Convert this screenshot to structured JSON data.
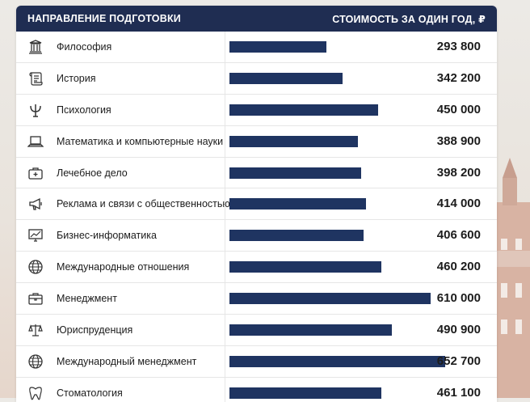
{
  "table": {
    "header_left": "НАПРАВЛЕНИЕ ПОДГОТОВКИ",
    "header_right": "СТОИМОСТЬ ЗА ОДИН ГОД, ₽"
  },
  "chart_data": {
    "type": "bar",
    "orientation": "horizontal",
    "categories": [
      "Философия",
      "История",
      "Психология",
      "Математика и компьютерные науки",
      "Лечебное дело",
      "Реклама и связи с общественностью",
      "Бизнес-информатика",
      "Международные отношения",
      "Менеджмент",
      "Юриспруденция",
      "Международный менеджмент",
      "Стоматология"
    ],
    "values": [
      293800,
      342200,
      450000,
      388900,
      398200,
      414000,
      406600,
      460200,
      610000,
      490900,
      652700,
      461100
    ],
    "value_labels": [
      "293 800",
      "342 200",
      "450 000",
      "388 900",
      "398 200",
      "414 000",
      "406 600",
      "460 200",
      "610 000",
      "490 900",
      "652 700",
      "461 100"
    ],
    "icons": [
      "column-icon",
      "scroll-icon",
      "psi-icon",
      "laptop-icon",
      "medical-kit-icon",
      "megaphone-icon",
      "chart-screen-icon",
      "globe-icon",
      "briefcase-icon",
      "scales-icon",
      "globe-icon",
      "tooth-icon"
    ],
    "xlim": [
      0,
      700000
    ],
    "bar_color": "#1f3461",
    "header_color": "#1f2d52"
  }
}
